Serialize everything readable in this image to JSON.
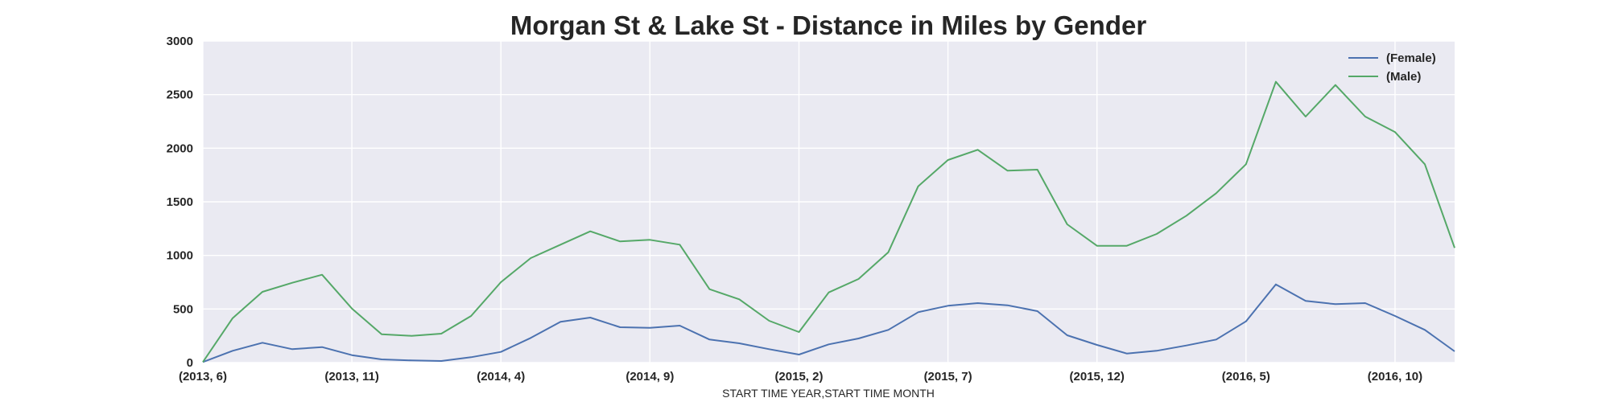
{
  "chart_data": {
    "type": "line",
    "title": "Morgan St & Lake St - Distance in Miles by Gender",
    "xlabel": "START TIME YEAR,START TIME MONTH",
    "ylabel": "",
    "ylim": [
      0,
      3000
    ],
    "yticks": [
      0,
      500,
      1000,
      1500,
      2000,
      2500,
      3000
    ],
    "grid": true,
    "legend_position": "top-right",
    "categories": [
      "(2013, 6)",
      "(2013, 7)",
      "(2013, 8)",
      "(2013, 9)",
      "(2013, 10)",
      "(2013, 11)",
      "(2013, 12)",
      "(2014, 1)",
      "(2014, 2)",
      "(2014, 3)",
      "(2014, 4)",
      "(2014, 5)",
      "(2014, 6)",
      "(2014, 7)",
      "(2014, 8)",
      "(2014, 9)",
      "(2014, 10)",
      "(2014, 11)",
      "(2014, 12)",
      "(2015, 1)",
      "(2015, 2)",
      "(2015, 3)",
      "(2015, 4)",
      "(2015, 5)",
      "(2015, 6)",
      "(2015, 7)",
      "(2015, 8)",
      "(2015, 9)",
      "(2015, 10)",
      "(2015, 11)",
      "(2015, 12)",
      "(2016, 1)",
      "(2016, 2)",
      "(2016, 3)",
      "(2016, 4)",
      "(2016, 5)",
      "(2016, 6)",
      "(2016, 7)",
      "(2016, 8)",
      "(2016, 9)",
      "(2016, 10)",
      "(2016, 11)",
      "(2016, 12)"
    ],
    "xtick_labels": [
      "(2013, 6)",
      "(2013, 11)",
      "(2014, 4)",
      "(2014, 9)",
      "(2015, 2)",
      "(2015, 7)",
      "(2015, 12)",
      "(2016, 5)",
      "(2016, 10)"
    ],
    "series": [
      {
        "name": "(Female)",
        "color": "#4c72b0",
        "values": [
          5,
          110,
          185,
          125,
          145,
          70,
          30,
          20,
          15,
          50,
          100,
          230,
          380,
          420,
          330,
          325,
          345,
          215,
          180,
          125,
          75,
          170,
          225,
          305,
          470,
          530,
          555,
          535,
          480,
          255,
          165,
          85,
          110,
          160,
          215,
          385,
          730,
          575,
          545,
          555,
          435,
          305,
          105
        ]
      },
      {
        "name": "(Male)",
        "color": "#55a868",
        "values": [
          5,
          415,
          660,
          745,
          820,
          505,
          265,
          250,
          270,
          435,
          750,
          975,
          1100,
          1225,
          1130,
          1145,
          1100,
          685,
          590,
          390,
          285,
          655,
          780,
          1030,
          1645,
          1890,
          1985,
          1790,
          1800,
          1290,
          1090,
          1090,
          1200,
          1370,
          1580,
          1850,
          2620,
          2295,
          2590,
          2295,
          2150,
          1850,
          1070
        ]
      }
    ]
  }
}
